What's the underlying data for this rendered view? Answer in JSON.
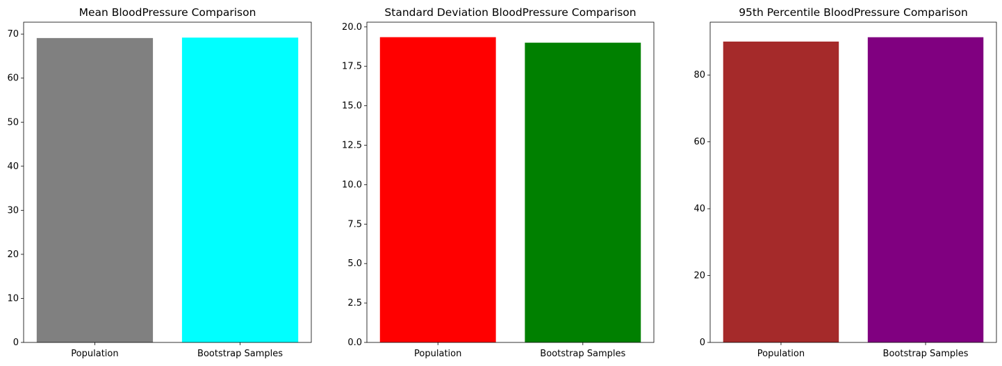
{
  "chart_data": [
    {
      "type": "bar",
      "title": "Mean BloodPressure Comparison",
      "categories": [
        "Population",
        "Bootstrap Samples"
      ],
      "values": [
        69.1,
        69.2
      ],
      "colors": [
        "#808080",
        "#00ffff"
      ],
      "ylim": [
        0,
        72.7
      ],
      "yticks": [
        0,
        10,
        20,
        30,
        40,
        50,
        60,
        70
      ],
      "ytick_labels": [
        "0",
        "10",
        "20",
        "30",
        "40",
        "50",
        "60",
        "70"
      ],
      "xlabel": "",
      "ylabel": "",
      "grid": false
    },
    {
      "type": "bar",
      "title": "Standard Deviation BloodPressure Comparison",
      "categories": [
        "Population",
        "Bootstrap Samples"
      ],
      "values": [
        19.35,
        19.0
      ],
      "colors": [
        "#ff0000",
        "#008000"
      ],
      "ylim": [
        0,
        20.3
      ],
      "yticks": [
        0,
        2.5,
        5,
        7.5,
        10,
        12.5,
        15,
        17.5,
        20
      ],
      "ytick_labels": [
        "0.0",
        "2.5",
        "5.0",
        "7.5",
        "10.0",
        "12.5",
        "15.0",
        "17.5",
        "20.0"
      ],
      "xlabel": "",
      "ylabel": "",
      "grid": false
    },
    {
      "type": "bar",
      "title": "95th Percentile BloodPressure Comparison",
      "categories": [
        "Population",
        "Bootstrap Samples"
      ],
      "values": [
        90.0,
        91.3
      ],
      "colors": [
        "#a52a2a",
        "#800080"
      ],
      "ylim": [
        0,
        95.8
      ],
      "yticks": [
        0,
        20,
        40,
        60,
        80
      ],
      "ytick_labels": [
        "0",
        "20",
        "40",
        "60",
        "80"
      ],
      "xlabel": "",
      "ylabel": "",
      "grid": false
    }
  ]
}
